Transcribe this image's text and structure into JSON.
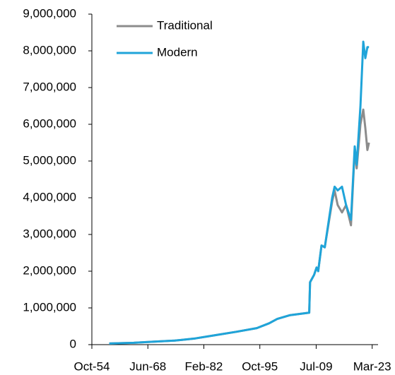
{
  "chart_data": {
    "type": "line",
    "x": [
      1959,
      1965,
      1970,
      1975,
      1980,
      1985,
      1990,
      1995,
      1998,
      2000,
      2003,
      2007.8,
      2008,
      2009,
      2009.6,
      2010,
      2010.8,
      2011.6,
      2013.4,
      2014,
      2014.75,
      2015.8,
      2016.8,
      2018,
      2018.9,
      2019.4,
      2020.3,
      2021,
      2021.5,
      2022,
      2022.4
    ],
    "series": [
      {
        "name": "Traditional",
        "color": "#8c8c8c",
        "values": [
          30000,
          50000,
          80000,
          110000,
          170000,
          260000,
          350000,
          450000,
          580000,
          700000,
          800000,
          870000,
          1700000,
          1900000,
          2100000,
          2000000,
          2700000,
          2650000,
          3900000,
          4200000,
          3800000,
          3600000,
          3800000,
          3250000,
          5300000,
          4800000,
          6000000,
          6400000,
          5900000,
          5300000,
          5500000
        ]
      },
      {
        "name": "Modern",
        "color": "#1fa4d9",
        "values": [
          30000,
          50000,
          80000,
          110000,
          170000,
          260000,
          350000,
          450000,
          580000,
          700000,
          800000,
          870000,
          1700000,
          1900000,
          2100000,
          2000000,
          2700000,
          2650000,
          4000000,
          4300000,
          4200000,
          4300000,
          3800000,
          3400000,
          5400000,
          4900000,
          6500000,
          8250000,
          7800000,
          8100000,
          8100000
        ]
      }
    ],
    "xlim": [
      1954.75,
      2024.6
    ],
    "xticks": [
      {
        "value": 1954.75,
        "label": "Oct-54"
      },
      {
        "value": 1968.42,
        "label": "Jun-68"
      },
      {
        "value": 1982.08,
        "label": "Feb-82"
      },
      {
        "value": 1995.75,
        "label": "Oct-95"
      },
      {
        "value": 2009.5,
        "label": "Jul-09"
      },
      {
        "value": 2023.17,
        "label": "Mar-23"
      }
    ],
    "ylim": [
      0,
      9000000
    ],
    "yticks": [
      0,
      {
        "value": 1000000,
        "label": "1,000,000"
      },
      {
        "value": 2000000,
        "label": "2,000,000"
      },
      {
        "value": 3000000,
        "label": "3,000,000"
      },
      {
        "value": 4000000,
        "label": "4,000,000"
      },
      {
        "value": 5000000,
        "label": "5,000,000"
      },
      {
        "value": 6000000,
        "label": "6,000,000"
      },
      {
        "value": 7000000,
        "label": "7,000,000"
      },
      {
        "value": 8000000,
        "label": "8,000,000"
      },
      {
        "value": 9000000,
        "label": "9,000,000"
      }
    ],
    "legend": "upper left"
  }
}
